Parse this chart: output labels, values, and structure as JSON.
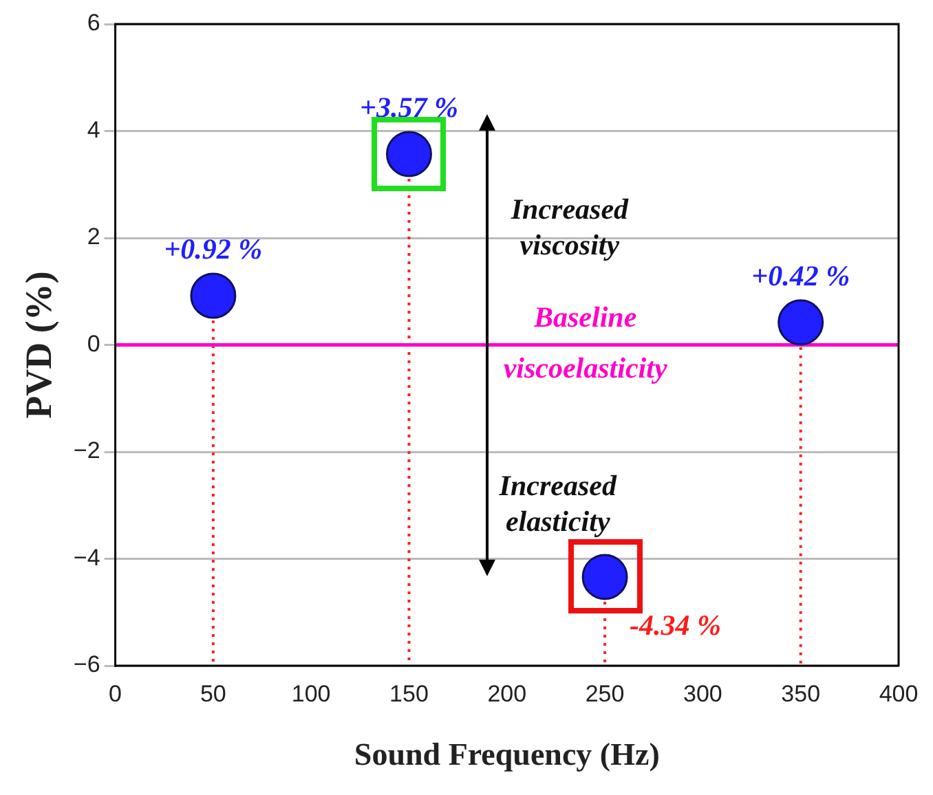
{
  "chart_data": {
    "type": "lollipop",
    "xlabel": "Sound Frequency (Hz)",
    "ylabel": "PVD (%)",
    "x": [
      50,
      150,
      250,
      350
    ],
    "values": [
      0.92,
      3.57,
      -4.34,
      0.42
    ],
    "value_labels": [
      "+0.92 %",
      "+3.57 %",
      "-4.34 %",
      "+0.42 %"
    ],
    "color": "#1f1fff",
    "marker": "circle",
    "line_style": "dotted",
    "xlim": [
      0,
      400
    ],
    "xticks": [
      0,
      50,
      100,
      150,
      200,
      250,
      300,
      350,
      400
    ],
    "ylim": [
      -6,
      6
    ],
    "yticks": [
      -6,
      -4,
      -2,
      0,
      2,
      4,
      6
    ],
    "grid": "y",
    "ref_lines": [
      {
        "axis": "y",
        "value": 0,
        "label": "Baseline viscoelasticity",
        "color": "#ff00cc"
      }
    ],
    "annotations": [
      "Increased viscosity",
      "Increased elasticity"
    ],
    "legend": false
  }
}
